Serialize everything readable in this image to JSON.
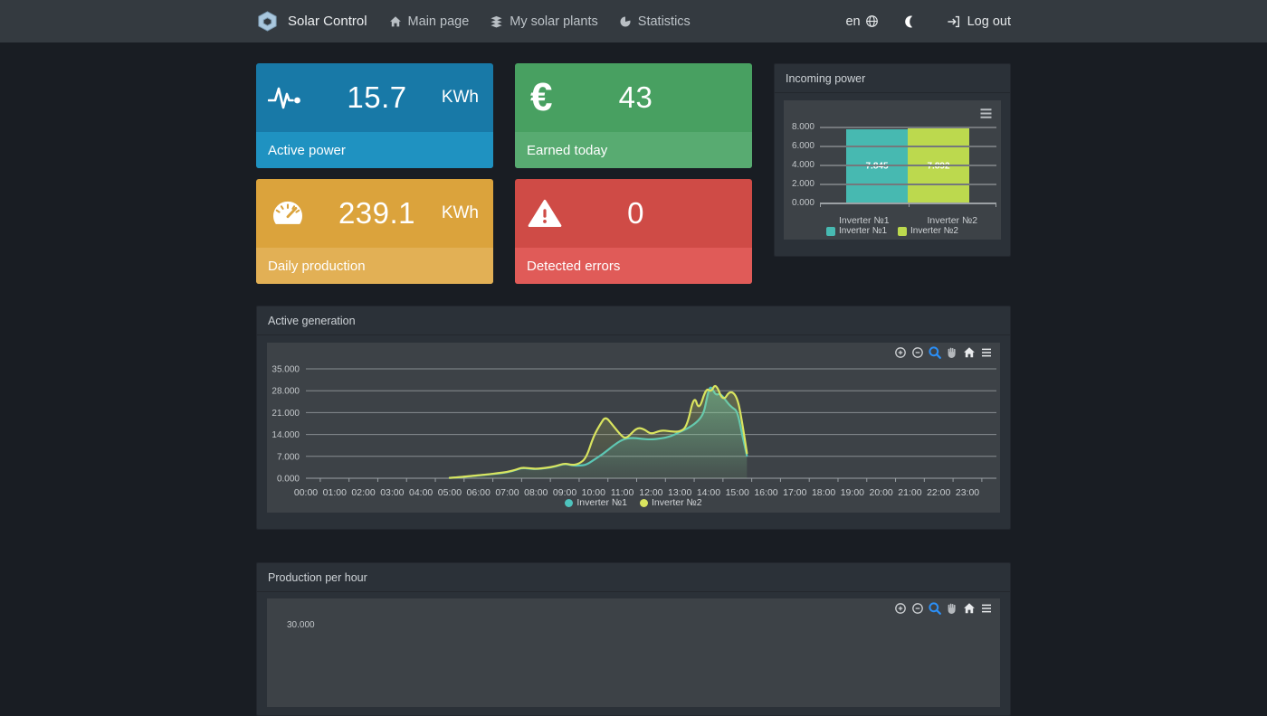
{
  "navbar": {
    "brand": "Solar Control",
    "items": [
      {
        "label": "Main page",
        "icon": "home-icon"
      },
      {
        "label": "My solar plants",
        "icon": "layers-icon"
      },
      {
        "label": "Statistics",
        "icon": "pie-chart-icon"
      }
    ],
    "language": "en",
    "logout_label": "Log out"
  },
  "cards": [
    {
      "label": "Active power",
      "value": "15.7",
      "unit": "KWh",
      "color": "#1879a7",
      "footer_color": "#1f92c1",
      "icon": "pulse-icon"
    },
    {
      "label": "Earned today",
      "value": "43",
      "unit": "",
      "color": "#48a061",
      "footer_color": "#58ab71",
      "icon": "euro-icon",
      "icon_glyph": "€"
    },
    {
      "label": "Daily production",
      "value": "239.1",
      "unit": "KWh",
      "color": "#dba33c",
      "footer_color": "#e2b055",
      "icon": "gauge-icon"
    },
    {
      "label": "Detected errors",
      "value": "0",
      "unit": "",
      "color": "#cf4b46",
      "footer_color": "#e05b58",
      "icon": "warning-icon"
    }
  ],
  "panels": {
    "incoming_power": {
      "title": "Incoming power"
    },
    "active_generation": {
      "title": "Active generation"
    },
    "production_per_hour": {
      "title": "Production per hour",
      "partial_ytick": "30.000"
    }
  },
  "toolbar_icons": [
    "zoom-in",
    "zoom-out",
    "selection-zoom",
    "pan",
    "reset-home",
    "menu"
  ],
  "chart_data": [
    {
      "id": "incoming-power",
      "type": "bar",
      "title": "Incoming power",
      "categories": [
        "Inverter №1",
        "Inverter №2"
      ],
      "values": [
        7845,
        7892
      ],
      "value_labels": [
        "7.845",
        "7.892"
      ],
      "colors": [
        "#47b9b1",
        "#bcd94e"
      ],
      "ylim": [
        0,
        8400
      ],
      "yticks": [
        0,
        2000,
        4000,
        6000,
        8000
      ],
      "ytick_labels": [
        "0.000",
        "2.000",
        "4.000",
        "6.000",
        "8.000"
      ],
      "legend": [
        "Inverter №1",
        "Inverter №2"
      ],
      "grid": true,
      "legend_position": "bottom"
    },
    {
      "id": "active-generation",
      "type": "area",
      "title": "Active generation",
      "xtick_labels": [
        "00:00",
        "01:00",
        "02:00",
        "03:00",
        "04:00",
        "05:00",
        "06:00",
        "07:00",
        "08:00",
        "09:00",
        "10:00",
        "11:00",
        "12:00",
        "13:00",
        "14:00",
        "15:00",
        "16:00",
        "17:00",
        "18:00",
        "19:00",
        "20:00",
        "21:00",
        "22:00",
        "23:00"
      ],
      "ylim": [
        0,
        37000
      ],
      "yticks": [
        0,
        7000,
        14000,
        21000,
        28000,
        35000
      ],
      "ytick_labels": [
        "0.000",
        "7.000",
        "14.000",
        "21.000",
        "28.000",
        "35.000"
      ],
      "grid": true,
      "legend_position": "bottom",
      "series": [
        {
          "name": "Inverter №1",
          "color": "#4ec3bd",
          "points": [
            [
              "05:00",
              100
            ],
            [
              "05:20",
              300
            ],
            [
              "05:40",
              600
            ],
            [
              "06:00",
              900
            ],
            [
              "06:20",
              1200
            ],
            [
              "06:40",
              1500
            ],
            [
              "07:00",
              1900
            ],
            [
              "07:20",
              2700
            ],
            [
              "07:30",
              3300
            ],
            [
              "07:45",
              3100
            ],
            [
              "08:00",
              2900
            ],
            [
              "08:20",
              3200
            ],
            [
              "08:40",
              3700
            ],
            [
              "09:00",
              4700
            ],
            [
              "09:15",
              4100
            ],
            [
              "09:30",
              4000
            ],
            [
              "09:45",
              4300
            ],
            [
              "10:00",
              5800
            ],
            [
              "10:20",
              7800
            ],
            [
              "10:40",
              10300
            ],
            [
              "11:00",
              12400
            ],
            [
              "11:20",
              13000
            ],
            [
              "11:40",
              12600
            ],
            [
              "12:00",
              12400
            ],
            [
              "12:20",
              12700
            ],
            [
              "12:40",
              13300
            ],
            [
              "13:00",
              14800
            ],
            [
              "13:20",
              16200
            ],
            [
              "13:40",
              18500
            ],
            [
              "13:50",
              21000
            ],
            [
              "13:55",
              24500
            ],
            [
              "14:00",
              28000
            ],
            [
              "14:05",
              29500
            ],
            [
              "14:15",
              26500
            ],
            [
              "14:25",
              27200
            ],
            [
              "14:40",
              24000
            ],
            [
              "14:50",
              22500
            ],
            [
              "15:00",
              21500
            ],
            [
              "15:10",
              14000
            ],
            [
              "15:20",
              7200
            ]
          ]
        },
        {
          "name": "Inverter №2",
          "color": "#d9e45f",
          "points": [
            [
              "05:00",
              120
            ],
            [
              "05:20",
              350
            ],
            [
              "05:40",
              650
            ],
            [
              "06:00",
              950
            ],
            [
              "06:20",
              1250
            ],
            [
              "06:40",
              1600
            ],
            [
              "07:00",
              2000
            ],
            [
              "07:20",
              2800
            ],
            [
              "07:30",
              3400
            ],
            [
              "07:45",
              3200
            ],
            [
              "08:00",
              3000
            ],
            [
              "08:20",
              3300
            ],
            [
              "08:40",
              3800
            ],
            [
              "09:00",
              4800
            ],
            [
              "09:15",
              4200
            ],
            [
              "09:30",
              4600
            ],
            [
              "09:45",
              6500
            ],
            [
              "10:00",
              13500
            ],
            [
              "10:15",
              17500
            ],
            [
              "10:25",
              19800
            ],
            [
              "10:40",
              17000
            ],
            [
              "11:00",
              13200
            ],
            [
              "11:10",
              12800
            ],
            [
              "11:30",
              16200
            ],
            [
              "11:45",
              15800
            ],
            [
              "12:00",
              14000
            ],
            [
              "12:20",
              15400
            ],
            [
              "12:40",
              15000
            ],
            [
              "13:00",
              14800
            ],
            [
              "13:15",
              16500
            ],
            [
              "13:30",
              26800
            ],
            [
              "13:40",
              21500
            ],
            [
              "13:55",
              29000
            ],
            [
              "14:05",
              27500
            ],
            [
              "14:15",
              30500
            ],
            [
              "14:30",
              24500
            ],
            [
              "14:45",
              28200
            ],
            [
              "15:00",
              26000
            ],
            [
              "15:10",
              18000
            ],
            [
              "15:20",
              8000
            ]
          ]
        }
      ]
    }
  ]
}
